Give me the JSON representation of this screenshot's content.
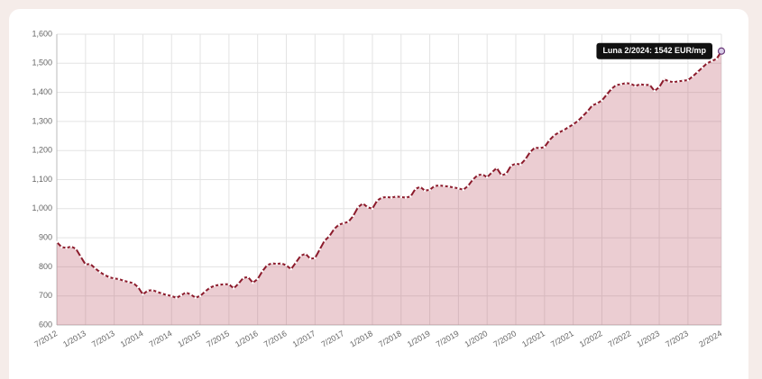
{
  "chart_data": {
    "type": "area",
    "annotation": "Luna 2/2024: 1542 EUR/mp",
    "categories": [
      "7/2012",
      null,
      null,
      null,
      null,
      null,
      "1/2013",
      null,
      null,
      null,
      null,
      null,
      "7/2013",
      null,
      null,
      null,
      null,
      null,
      "1/2014",
      null,
      null,
      null,
      null,
      null,
      "7/2014",
      null,
      null,
      null,
      null,
      null,
      "1/2015",
      null,
      null,
      null,
      null,
      null,
      "7/2015",
      null,
      null,
      null,
      null,
      null,
      "1/2016",
      null,
      null,
      null,
      null,
      null,
      "7/2016",
      null,
      null,
      null,
      null,
      null,
      "1/2017",
      null,
      null,
      null,
      null,
      null,
      "7/2017",
      null,
      null,
      null,
      null,
      null,
      "1/2018",
      null,
      null,
      null,
      null,
      null,
      "7/2018",
      null,
      null,
      null,
      null,
      null,
      "1/2019",
      null,
      null,
      null,
      null,
      null,
      "7/2019",
      null,
      null,
      null,
      null,
      null,
      "1/2020",
      null,
      null,
      null,
      null,
      null,
      "7/2020",
      null,
      null,
      null,
      null,
      null,
      "1/2021",
      null,
      null,
      null,
      null,
      null,
      "7/2021",
      null,
      null,
      null,
      null,
      null,
      "1/2022",
      null,
      null,
      null,
      null,
      null,
      "7/2022",
      null,
      null,
      null,
      null,
      null,
      "1/2023",
      null,
      null,
      null,
      null,
      null,
      "7/2023",
      null,
      null,
      null,
      null,
      null,
      null,
      "2/2024"
    ],
    "values": [
      885,
      868,
      865,
      870,
      862,
      835,
      808,
      810,
      795,
      782,
      772,
      764,
      760,
      758,
      752,
      748,
      744,
      730,
      705,
      718,
      720,
      714,
      708,
      703,
      700,
      693,
      702,
      712,
      705,
      694,
      700,
      715,
      728,
      735,
      738,
      740,
      740,
      726,
      742,
      762,
      765,
      745,
      758,
      785,
      806,
      812,
      810,
      812,
      805,
      792,
      815,
      838,
      845,
      828,
      830,
      860,
      890,
      905,
      930,
      945,
      950,
      955,
      975,
      1005,
      1018,
      1005,
      1000,
      1028,
      1038,
      1040,
      1038,
      1042,
      1040,
      1038,
      1042,
      1068,
      1075,
      1062,
      1065,
      1078,
      1080,
      1078,
      1076,
      1073,
      1070,
      1065,
      1078,
      1100,
      1115,
      1118,
      1108,
      1125,
      1140,
      1115,
      1120,
      1148,
      1155,
      1152,
      1170,
      1195,
      1210,
      1208,
      1212,
      1235,
      1252,
      1262,
      1270,
      1280,
      1290,
      1302,
      1318,
      1335,
      1355,
      1362,
      1372,
      1392,
      1412,
      1425,
      1428,
      1432,
      1430,
      1422,
      1428,
      1425,
      1426,
      1405,
      1418,
      1445,
      1438,
      1435,
      1438,
      1440,
      1442,
      1455,
      1470,
      1485,
      1500,
      1508,
      1515,
      1542
    ],
    "color": "#8b1a2b",
    "fill_color": "rgba(190,90,105,0.3)",
    "ylim": [
      600,
      1600
    ],
    "yticks": [
      600,
      700,
      800,
      900,
      {
        "value": 1000,
        "label": "1,000"
      },
      {
        "value": 1100,
        "label": "1,100"
      },
      {
        "value": 1200,
        "label": "1,200"
      },
      {
        "value": 1300,
        "label": "1,300"
      },
      {
        "value": 1400,
        "label": "1,400"
      },
      {
        "value": 1500,
        "label": "1,500"
      },
      {
        "value": 1600,
        "label": "1,600"
      }
    ],
    "grid": true
  }
}
